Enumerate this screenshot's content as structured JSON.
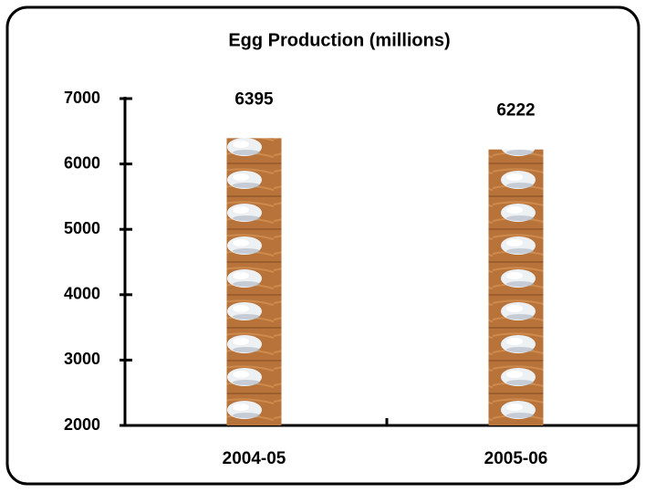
{
  "chart_data": {
    "type": "bar",
    "title": "Egg Production (millions)",
    "categories": [
      "2004-05",
      "2005-06"
    ],
    "values": [
      6395,
      6222
    ],
    "color": "#b8733a",
    "ylim": [
      2000,
      7000
    ],
    "yticks": [
      2000,
      3000,
      4000,
      5000,
      6000,
      7000
    ],
    "grid": false
  }
}
